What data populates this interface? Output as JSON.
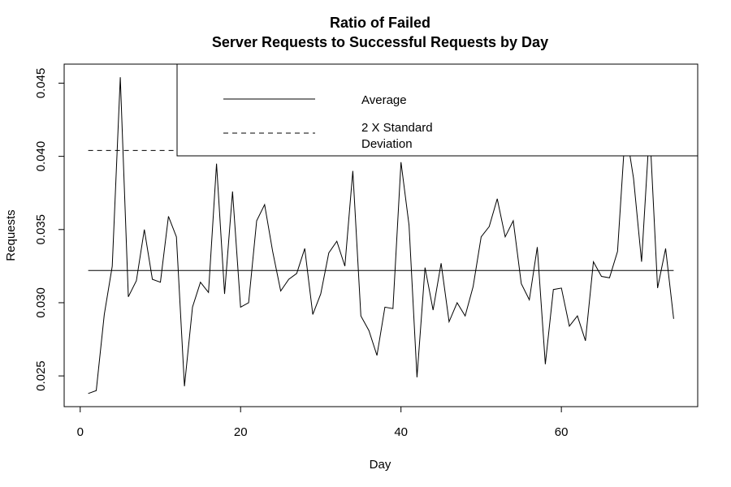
{
  "chart_data": {
    "type": "line",
    "title": [
      "Ratio of Failed",
      "Server Requests to Successful Requests by Day"
    ],
    "xlabel": "Day",
    "ylabel": "Requests",
    "xlim": [
      -2,
      77
    ],
    "ylim": [
      0.0229,
      0.0463
    ],
    "xticks": [
      0,
      20,
      40,
      60
    ],
    "xtick_labels": [
      "0",
      "20",
      "40",
      "60"
    ],
    "yticks": [
      0.025,
      0.03,
      0.035,
      0.04,
      0.045
    ],
    "ytick_labels": [
      "0.025",
      "0.030",
      "0.035",
      "0.040",
      "0.045"
    ],
    "legend": {
      "placement": "top-right",
      "entries": [
        {
          "label": [
            "Average"
          ],
          "style": "solid"
        },
        {
          "label": [
            "2 X Standard",
            "Deviation"
          ],
          "style": "dashed"
        }
      ]
    },
    "series": [
      {
        "style": "solid",
        "x": [
          1,
          2,
          3,
          4,
          5,
          6,
          7,
          8,
          9,
          10,
          11,
          12,
          13,
          14,
          15,
          16,
          17,
          18,
          19,
          20,
          21,
          22,
          23,
          24,
          25,
          26,
          27,
          28,
          29,
          30,
          31,
          32,
          33,
          34,
          35,
          36,
          37,
          38,
          39,
          40,
          41,
          42,
          43,
          44,
          45,
          46,
          47,
          48,
          49,
          50,
          51,
          52,
          53,
          54,
          55,
          56,
          57,
          58,
          59,
          60,
          61,
          62,
          63,
          64,
          65,
          66,
          67,
          68,
          69,
          70,
          71,
          72,
          73,
          74
        ],
        "values": [
          0.0238,
          0.024,
          0.0292,
          0.0325,
          0.0454,
          0.0304,
          0.0315,
          0.035,
          0.0316,
          0.0314,
          0.0359,
          0.0345,
          0.0243,
          0.0297,
          0.0314,
          0.0307,
          0.0395,
          0.0306,
          0.0376,
          0.0297,
          0.03,
          0.0356,
          0.0367,
          0.0335,
          0.0308,
          0.0316,
          0.032,
          0.0337,
          0.0292,
          0.0306,
          0.0334,
          0.0342,
          0.0325,
          0.039,
          0.0291,
          0.0281,
          0.0264,
          0.0297,
          0.0296,
          0.0396,
          0.0353,
          0.0249,
          0.0324,
          0.0295,
          0.0327,
          0.0287,
          0.03,
          0.0291,
          0.0311,
          0.0345,
          0.0352,
          0.0371,
          0.0345,
          0.0356,
          0.0313,
          0.0302,
          0.0338,
          0.0258,
          0.0309,
          0.031,
          0.0284,
          0.0291,
          0.0274,
          0.0328,
          0.0318,
          0.0317,
          0.0335,
          0.042,
          0.0385,
          0.0328,
          0.042,
          0.031,
          0.0337,
          0.0289
        ]
      },
      {
        "style": "solid",
        "x": [
          1,
          74
        ],
        "values": [
          0.0322,
          0.0322
        ]
      },
      {
        "style": "dashed",
        "x": [
          1,
          74
        ],
        "values": [
          0.0404,
          0.0404
        ]
      }
    ],
    "grid": false
  }
}
